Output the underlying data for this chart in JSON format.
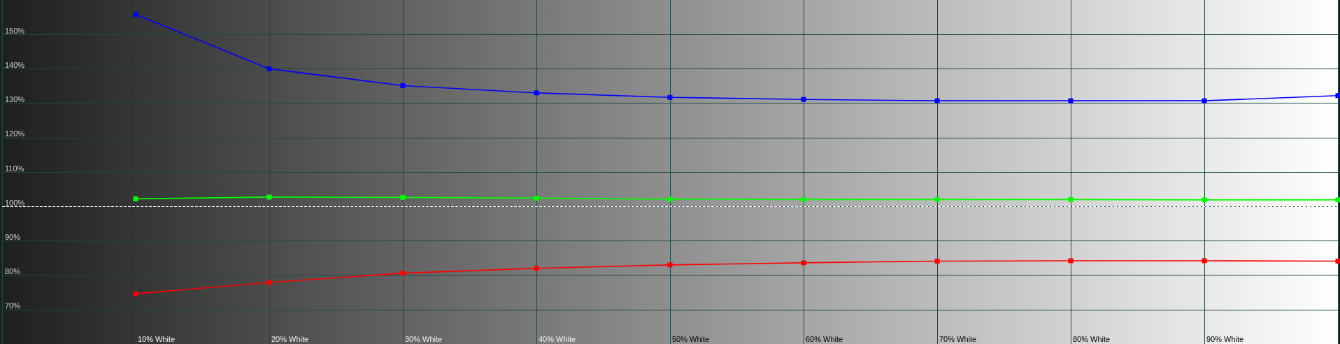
{
  "chart_data": {
    "type": "line",
    "categories": [
      null,
      "10% White",
      "20% White",
      "30% White",
      "40% White",
      "50% White",
      "60% White",
      "70% White",
      "80% White",
      "90% White",
      null
    ],
    "series": [
      {
        "color": "#0000ff",
        "values": [
          null,
          155.8,
          140,
          135.1,
          133,
          131.7,
          131.1,
          130.7,
          130.7,
          130.7,
          132.2
        ]
      },
      {
        "color": "#00ff00",
        "values": [
          null,
          102.2,
          102.7,
          102.6,
          102.4,
          102.1,
          102,
          102,
          102,
          101.9,
          101.9
        ]
      },
      {
        "color": "#ff0000",
        "values": [
          null,
          74.6,
          77.9,
          80.6,
          82,
          83,
          83.6,
          84.1,
          84.2,
          84.2,
          84.1
        ]
      }
    ],
    "ylim": [
      60,
      160
    ],
    "yticks": [
      {
        "value": 70,
        "label": "70%"
      },
      {
        "value": 80,
        "label": "80%"
      },
      {
        "value": 90,
        "label": "90%"
      },
      {
        "value": 100,
        "label": "100%"
      },
      {
        "value": 110,
        "label": "110%"
      },
      {
        "value": 120,
        "label": "120%"
      },
      {
        "value": 130,
        "label": "130%"
      },
      {
        "value": 140,
        "label": "140%"
      },
      {
        "value": 150,
        "label": "150%"
      }
    ],
    "ref_lines": [
      {
        "axis": "y",
        "value": 100,
        "color": "#ffffff",
        "line_style": "dashed"
      }
    ],
    "grid": true,
    "marker": "square",
    "line_style": "solid"
  }
}
